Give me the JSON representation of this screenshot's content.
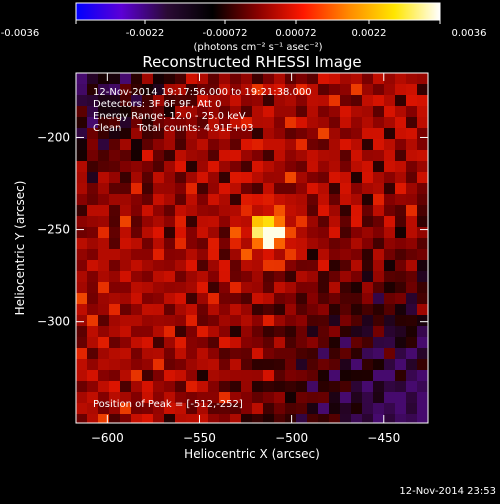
{
  "colorbar": {
    "ticks": [
      "-0.0036",
      "-0.0022",
      "-0.00072",
      "0.00072",
      "0.0022",
      "0.0036"
    ],
    "unit_label": "(photons cm⁻² s⁻¹ asec⁻²)",
    "range": [
      -0.0036,
      0.0036
    ],
    "colors": [
      "#0000ff",
      "#5c00d6",
      "#2b0a35",
      "#000000",
      "#8a0000",
      "#ff1800",
      "#ff8a00",
      "#ffe600",
      "#ffffff"
    ]
  },
  "annotations": {
    "time": "12-Nov-2014 19:17:56.000 to 19:21:38.000",
    "detectors": "Detectors: 3F 6F 9F, Att 0",
    "energy": "Energy Range: 12.0 - 25.0 keV",
    "clean": "Clean     Total counts: 4.91E+03",
    "peak": "Position of Peak = [-512,-252]"
  },
  "footer": {
    "timestamp": "12-Nov-2014 23:53"
  },
  "chart_data": {
    "type": "heatmap",
    "title": "Reconstructed RHESSI Image",
    "xlabel": "Heliocentric X (arcsec)",
    "ylabel": "Heliocentric Y (arcsec)",
    "xlim": [
      -617,
      -426
    ],
    "ylim": [
      -355,
      -165
    ],
    "xticks": [
      -600,
      -550,
      -500,
      -450
    ],
    "yticks": [
      -200,
      -250,
      -300
    ],
    "xtick_labels": [
      "−600",
      "−550",
      "−500",
      "−450"
    ],
    "ytick_labels": [
      "−200",
      "−250",
      "−300"
    ],
    "peak": {
      "x": -512,
      "y": -252
    },
    "grid": false
  }
}
